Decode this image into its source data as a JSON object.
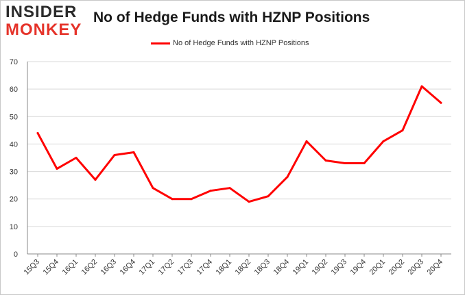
{
  "logo": {
    "line1": "INSIDER",
    "line2": "MONKEY"
  },
  "chart_data": {
    "type": "line",
    "title": "No of Hedge Funds with HZNP Positions",
    "xlabel": "",
    "ylabel": "",
    "categories": [
      "15Q3",
      "15Q4",
      "16Q1",
      "16Q2",
      "16Q3",
      "16Q4",
      "17Q1",
      "17Q2",
      "17Q3",
      "17Q4",
      "18Q1",
      "18Q2",
      "18Q3",
      "18Q4",
      "19Q1",
      "19Q2",
      "19Q3",
      "19Q4",
      "20Q1",
      "20Q2",
      "20Q3",
      "20Q4"
    ],
    "series": [
      {
        "name": "No of Hedge Funds with HZNP Positions",
        "values": [
          44,
          31,
          35,
          27,
          36,
          37,
          24,
          20,
          20,
          23,
          24,
          19,
          21,
          28,
          41,
          34,
          33,
          33,
          41,
          45,
          61,
          55
        ]
      }
    ],
    "ylim": [
      0,
      70
    ],
    "yticks": [
      0,
      10,
      20,
      30,
      40,
      50,
      60,
      70
    ],
    "grid": true,
    "legend_position": "top-center",
    "colors": {
      "line": "#ff0000",
      "grid": "#d9d9d9",
      "axis": "#888888"
    }
  }
}
